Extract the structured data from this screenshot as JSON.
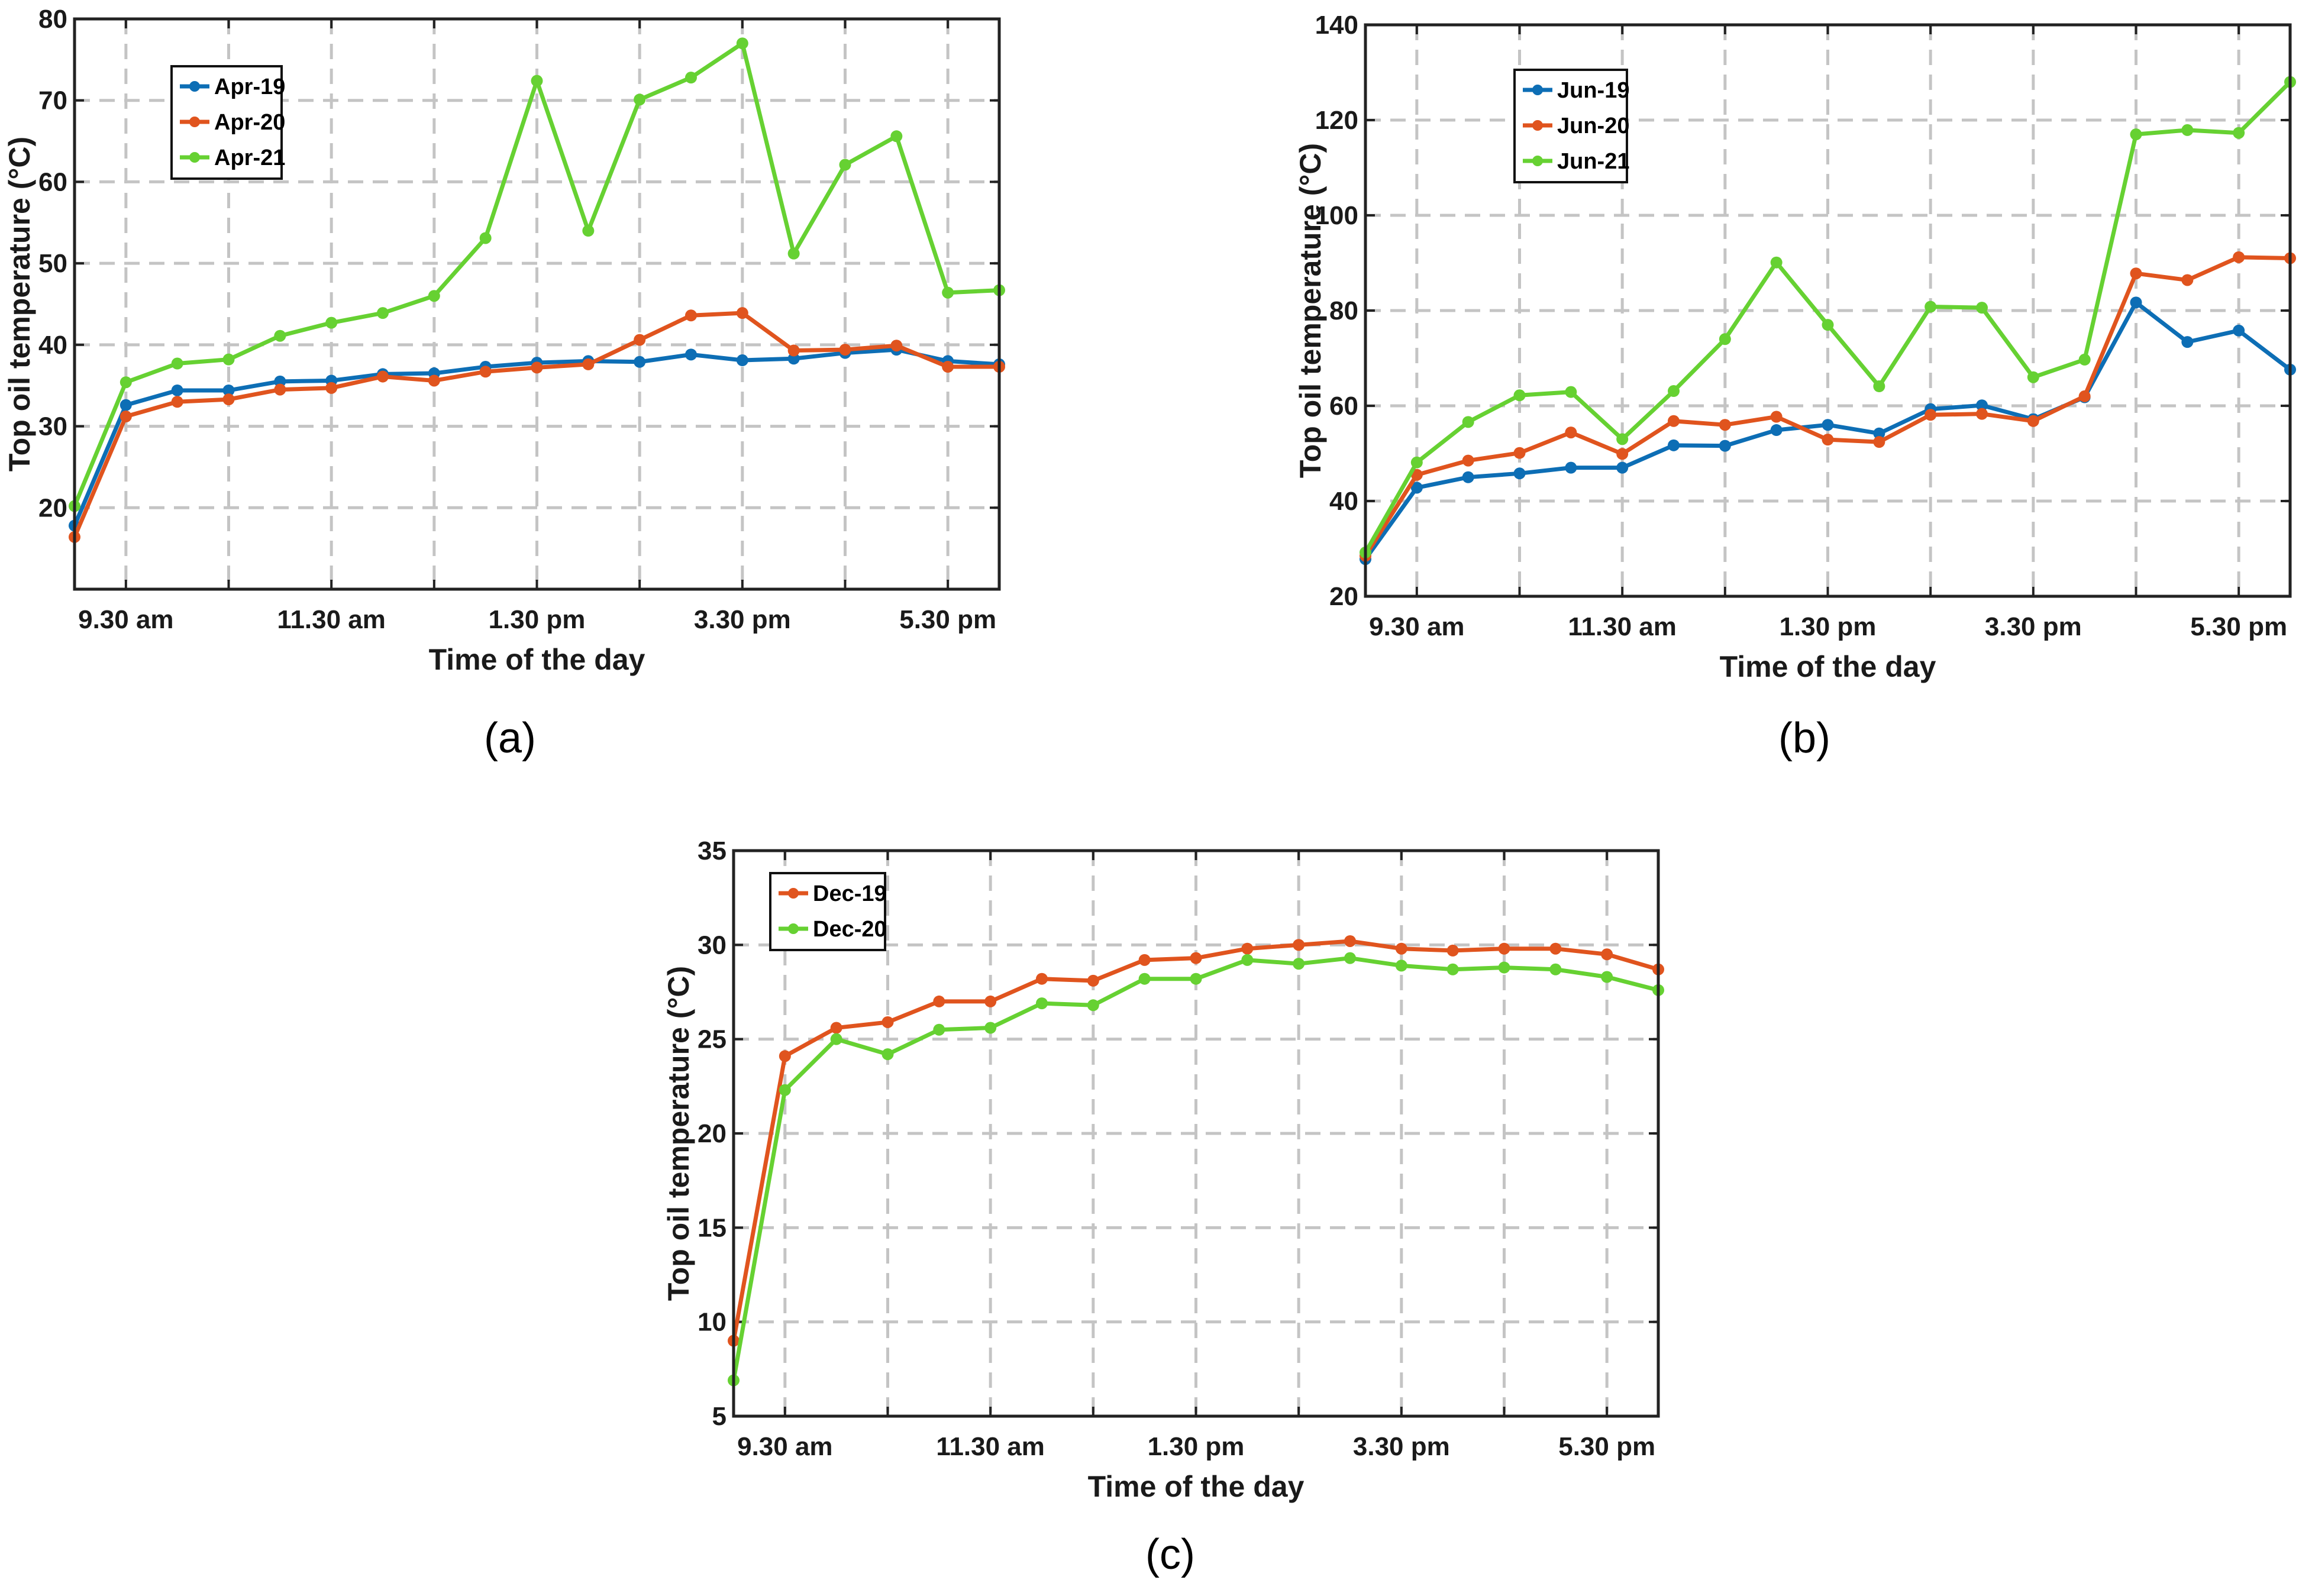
{
  "colors": {
    "blue": "#0d6eb5",
    "orange": "#e0541e",
    "green": "#66d132"
  },
  "chart_data": [
    {
      "type": "line",
      "panel_label": "(a)",
      "xlabel": "Time of the day",
      "ylabel": "Top oil temperature (°C)",
      "ylim": [
        10,
        80
      ],
      "yticks": [
        20,
        30,
        40,
        50,
        60,
        70,
        80
      ],
      "x_points": 19,
      "xticks": [
        {
          "index": 1,
          "label": "9.30 am"
        },
        {
          "index": 5,
          "label": "11.30 am"
        },
        {
          "index": 9,
          "label": "1.30 pm"
        },
        {
          "index": 13,
          "label": "3.30 pm"
        },
        {
          "index": 17,
          "label": "5.30 pm"
        }
      ],
      "legend_position": "top-left",
      "series": [
        {
          "name": "Apr-19",
          "color": "blue",
          "values": [
            17.8,
            32.6,
            34.4,
            34.4,
            35.5,
            35.6,
            36.4,
            36.5,
            37.3,
            37.8,
            38.0,
            37.9,
            38.8,
            38.1,
            38.3,
            39.0,
            39.4,
            38.0,
            37.6
          ]
        },
        {
          "name": "Apr-20",
          "color": "orange",
          "values": [
            16.4,
            31.2,
            33.0,
            33.3,
            34.5,
            34.7,
            36.1,
            35.6,
            36.7,
            37.2,
            37.6,
            40.6,
            43.6,
            43.9,
            39.3,
            39.4,
            39.9,
            37.3,
            37.3
          ]
        },
        {
          "name": "Apr-21",
          "color": "green",
          "values": [
            20.2,
            35.4,
            37.7,
            38.2,
            41.1,
            42.7,
            43.9,
            46.0,
            53.1,
            72.4,
            54.0,
            70.1,
            72.8,
            77.0,
            51.2,
            62.1,
            65.6,
            46.4,
            46.7
          ]
        }
      ]
    },
    {
      "type": "line",
      "panel_label": "(b)",
      "xlabel": "Time of the day",
      "ylabel": "Top oil temperature (°C)",
      "ylim": [
        20,
        140
      ],
      "yticks": [
        20,
        40,
        60,
        80,
        100,
        120,
        140
      ],
      "x_points": 19,
      "xticks": [
        {
          "index": 1,
          "label": "9.30 am"
        },
        {
          "index": 5,
          "label": "11.30 am"
        },
        {
          "index": 9,
          "label": "1.30 pm"
        },
        {
          "index": 13,
          "label": "3.30 pm"
        },
        {
          "index": 17,
          "label": "5.30 pm"
        }
      ],
      "legend_position": "top-left",
      "series": [
        {
          "name": "Jun-19",
          "color": "blue",
          "values": [
            27.8,
            42.8,
            45.0,
            45.8,
            47.0,
            47.0,
            51.7,
            51.6,
            54.9,
            56.0,
            54.2,
            59.3,
            60.1,
            57.2,
            61.8,
            81.7,
            73.4,
            75.8,
            67.6
          ]
        },
        {
          "name": "Jun-20",
          "color": "orange",
          "values": [
            28.5,
            45.5,
            48.5,
            50.1,
            54.4,
            49.9,
            56.8,
            56.0,
            57.7,
            52.9,
            52.4,
            58.1,
            58.3,
            56.8,
            62.0,
            87.8,
            86.4,
            91.2,
            91.0
          ]
        },
        {
          "name": "Jun-21",
          "color": "green",
          "values": [
            29.2,
            48.1,
            56.6,
            62.2,
            62.9,
            53.0,
            63.1,
            74.0,
            90.1,
            77.0,
            64.1,
            80.8,
            80.6,
            66.0,
            69.7,
            117.0,
            117.9,
            117.3,
            128.0
          ]
        }
      ]
    },
    {
      "type": "line",
      "panel_label": "(c)",
      "xlabel": "Time of the day",
      "ylabel": "Top oil temperature (°C)",
      "ylim": [
        5,
        35
      ],
      "yticks": [
        5,
        10,
        15,
        20,
        25,
        30,
        35
      ],
      "x_points": 19,
      "xticks": [
        {
          "index": 1,
          "label": "9.30 am"
        },
        {
          "index": 5,
          "label": "11.30 am"
        },
        {
          "index": 9,
          "label": "1.30 pm"
        },
        {
          "index": 13,
          "label": "3.30 pm"
        },
        {
          "index": 17,
          "label": "5.30 pm"
        }
      ],
      "legend_position": "top-left",
      "series": [
        {
          "name": "Dec-19",
          "color": "orange",
          "values": [
            9.0,
            24.1,
            25.6,
            25.9,
            27.0,
            27.0,
            28.2,
            28.1,
            29.2,
            29.3,
            29.8,
            30.0,
            30.2,
            29.8,
            29.7,
            29.8,
            29.8,
            29.5,
            28.7
          ]
        },
        {
          "name": "Dec-20",
          "color": "green",
          "values": [
            6.9,
            22.3,
            25.0,
            24.2,
            25.5,
            25.6,
            26.9,
            26.8,
            28.2,
            28.2,
            29.2,
            29.0,
            29.3,
            28.9,
            28.7,
            28.8,
            28.7,
            28.3,
            27.6
          ]
        }
      ]
    }
  ]
}
